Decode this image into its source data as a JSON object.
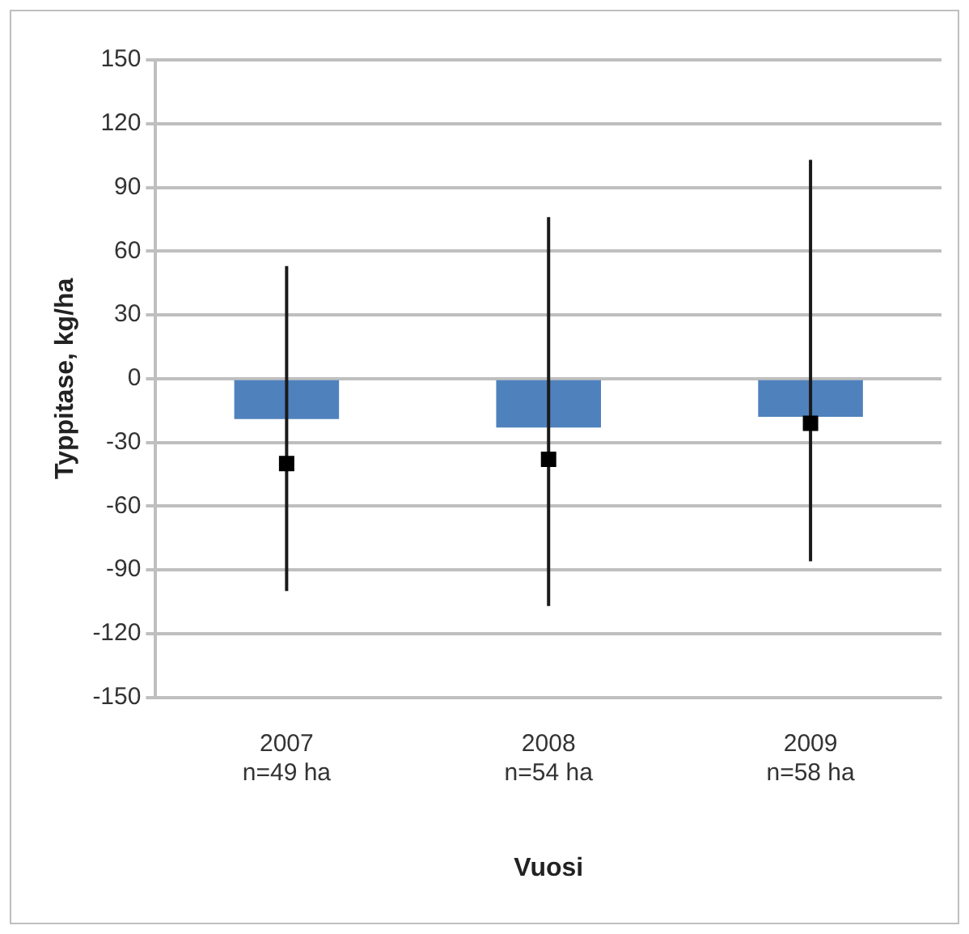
{
  "chart_data": {
    "type": "bar",
    "xlabel": "Vuosi",
    "ylabel": "Typpitase, kg/ha",
    "categories": [
      "2007\nn=49 ha",
      "2008\nn=54 ha",
      "2009\nn=58 ha"
    ],
    "series": [
      {
        "color": "#4f81bd",
        "values": [
          -19,
          -23,
          -18
        ]
      },
      {
        "type": "scatter",
        "color": "#000000",
        "marker": "square",
        "values": [
          -40,
          -38,
          -21
        ],
        "errors": [
          [
            -100,
            53
          ],
          [
            -107,
            76
          ],
          [
            -86,
            103
          ]
        ]
      }
    ],
    "ylim": [
      -150,
      150
    ],
    "yticks": [
      -150,
      -120,
      -90,
      -60,
      -30,
      0,
      30,
      60,
      90,
      120,
      150
    ],
    "grid": "y",
    "legend": false
  }
}
